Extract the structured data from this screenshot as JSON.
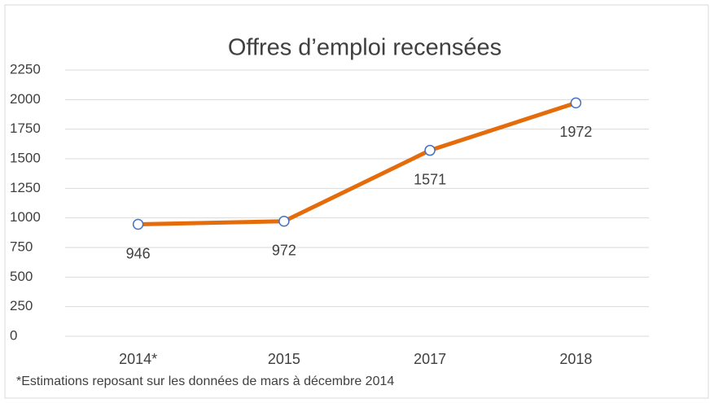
{
  "chart_data": {
    "type": "line",
    "title": "Offres d’emploi recensées",
    "categories": [
      "2014*",
      "2015",
      "2017",
      "2018"
    ],
    "series": [
      {
        "name": "Offres d’emploi",
        "color": "#e46c0a",
        "marker_edge": "#4472c4",
        "values": [
          946,
          972,
          1571,
          1972
        ]
      }
    ],
    "ylim": [
      0,
      2250
    ],
    "yticks": [
      0,
      250,
      500,
      750,
      1000,
      1250,
      1500,
      1750,
      2000,
      2250
    ],
    "grid": true,
    "note": "*Estimations reposant sur les données de mars à décembre 2014"
  }
}
